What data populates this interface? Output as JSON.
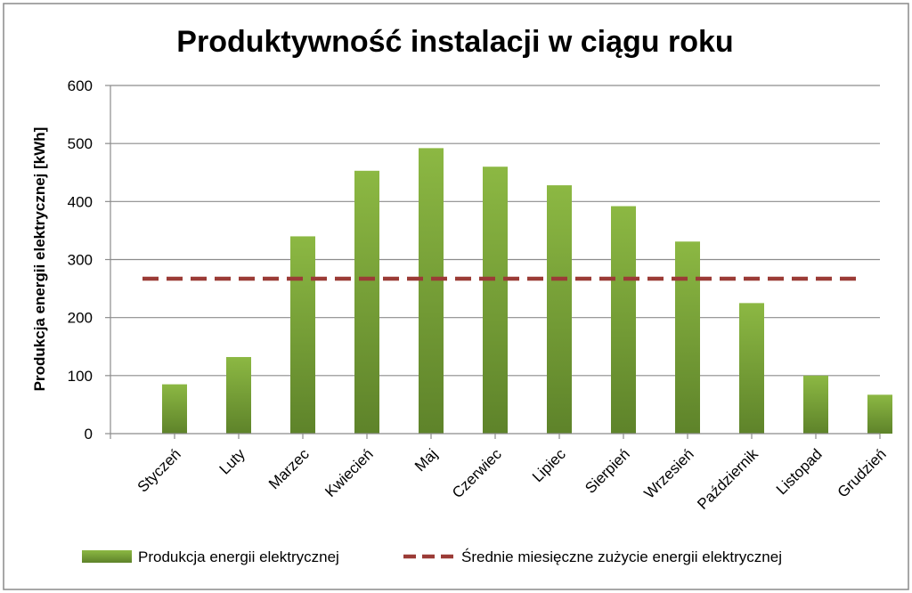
{
  "chart_data": {
    "type": "bar",
    "title": "Produktywność instalacji w ciągu roku",
    "xlabel": "",
    "ylabel": "Produkcja energii elektrycznej [kWh]",
    "ylim": [
      0,
      600
    ],
    "yticks": [
      0,
      100,
      200,
      300,
      400,
      500,
      600
    ],
    "grid": true,
    "legend_position": "bottom",
    "categories": [
      "Styczeń",
      "Luty",
      "Marzec",
      "Kwiecień",
      "Maj",
      "Czerwiec",
      "Lipiec",
      "Sierpień",
      "Wrzesień",
      "Październik",
      "Listopad",
      "Grudzień"
    ],
    "series": [
      {
        "name": "Produkcja energii elektrycznej",
        "type": "bar",
        "color": "#7ea63a",
        "values": [
          85,
          132,
          340,
          453,
          492,
          460,
          428,
          392,
          331,
          225,
          100,
          67
        ]
      },
      {
        "name": "Średnie miesięczne zużycie energii elektrycznej",
        "type": "line",
        "style": "dashed",
        "color": "#9b3b36",
        "values": [
          267,
          267,
          267,
          267,
          267,
          267,
          267,
          267,
          267,
          267,
          267,
          267
        ]
      }
    ]
  }
}
